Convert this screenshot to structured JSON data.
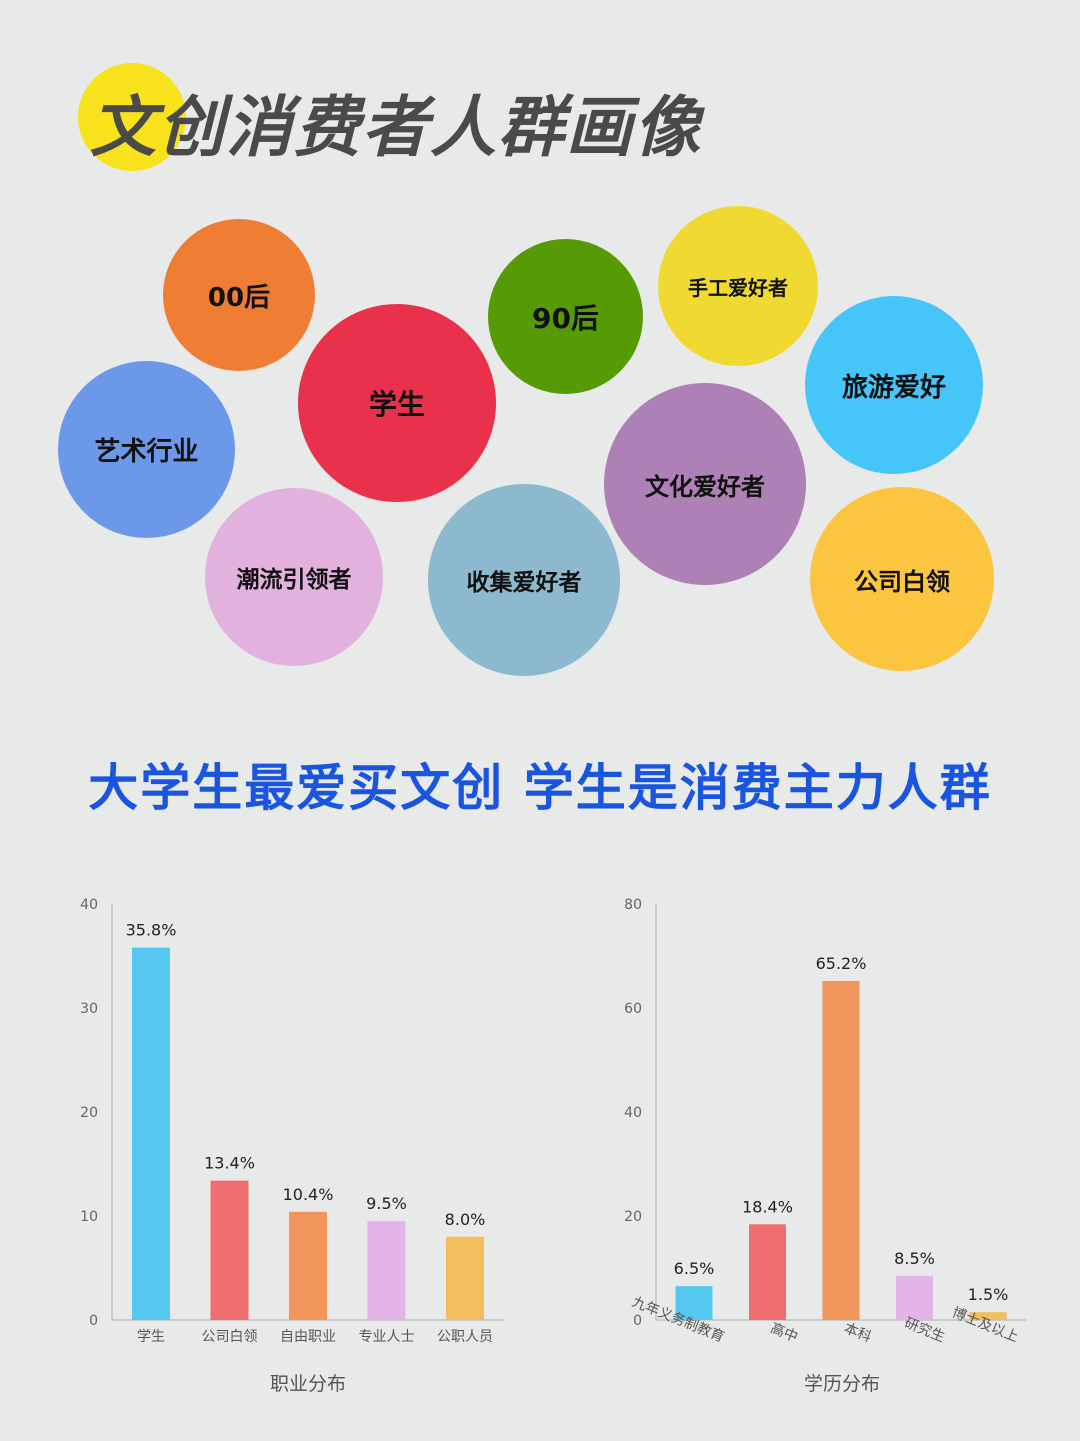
{
  "title": "文创消费者人群画像",
  "headline": "大学生最爱买文创 学生是消费主力人群",
  "bubbles": [
    {
      "label": "00后",
      "color": "#f07d34"
    },
    {
      "label": "90后",
      "color": "#569b05"
    },
    {
      "label": "手工爱好者",
      "color": "#f0da31"
    },
    {
      "label": "旅游爱好",
      "color": "#46c5f9"
    },
    {
      "label": "学生",
      "color": "#ea314c"
    },
    {
      "label": "艺术行业",
      "color": "#6c98ea"
    },
    {
      "label": "文化爱好者",
      "color": "#ad81b5"
    },
    {
      "label": "潮流引领者",
      "color": "#e2b1dd"
    },
    {
      "label": "收集爱好者",
      "color": "#8db9cf"
    },
    {
      "label": "公司白领",
      "color": "#fbc53f"
    }
  ],
  "chart_data": [
    {
      "type": "bar",
      "xlabel": "职业分布",
      "ylabel": "",
      "ylim": [
        0,
        40
      ],
      "yticks": [
        0,
        10,
        20,
        30,
        40
      ],
      "categories": [
        "学生",
        "公司白领",
        "自由职业",
        "专业人士",
        "公职人员"
      ],
      "values": [
        35.8,
        13.4,
        10.4,
        9.5,
        8.0
      ],
      "data_labels": [
        "35.8%",
        "13.4%",
        "10.4%",
        "9.5%",
        "8.0%"
      ],
      "colors": [
        "#55c8f0",
        "#f06e70",
        "#f2955d",
        "#e2b4e8",
        "#f2bd5c"
      ],
      "grid": false
    },
    {
      "type": "bar",
      "xlabel": "学历分布",
      "ylabel": "",
      "ylim": [
        0,
        80
      ],
      "yticks": [
        0,
        20,
        40,
        60,
        80
      ],
      "categories": [
        "九年义务制教育",
        "高中",
        "本科",
        "研究生",
        "博士及以上"
      ],
      "values": [
        6.5,
        18.4,
        65.2,
        8.5,
        1.5
      ],
      "data_labels": [
        "6.5%",
        "18.4%",
        "65.2%",
        "8.5%",
        "1.5%"
      ],
      "colors": [
        "#55c8f0",
        "#f06e70",
        "#f2955d",
        "#e2b4e8",
        "#f2bd5c"
      ],
      "grid": false
    }
  ]
}
